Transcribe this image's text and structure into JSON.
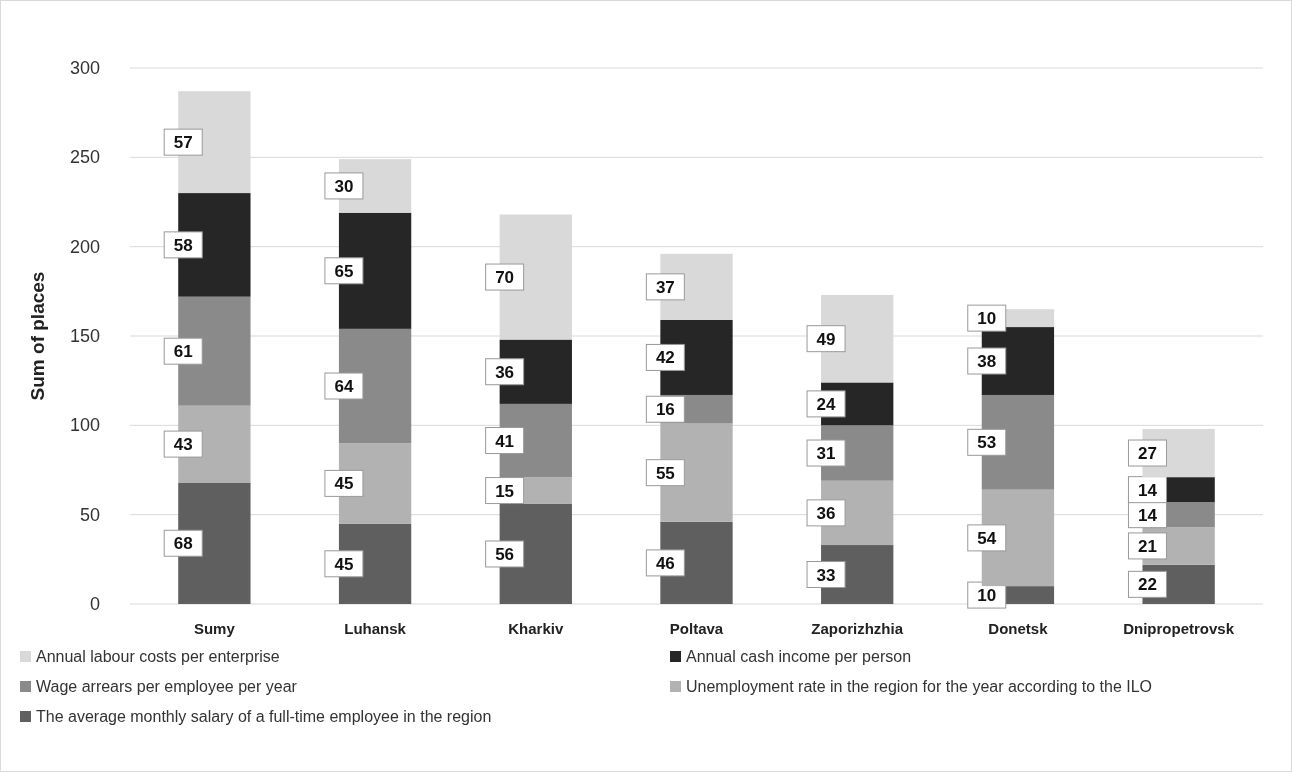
{
  "chart_data": {
    "type": "bar",
    "stacked": true,
    "ylabel": "Sum of places",
    "categories": [
      "Sumy",
      "Luhansk",
      "Kharkiv",
      "Poltava",
      "Zaporizhzhia",
      "Donetsk",
      "Dnipropetrovsk"
    ],
    "series": [
      {
        "name": "The average monthly salary of a full-time employee in the region",
        "color": "#5f5f5f",
        "values": [
          68,
          45,
          56,
          46,
          33,
          10,
          22
        ]
      },
      {
        "name": "Unemployment rate in the region for the year according to the ILO",
        "color": "#b2b2b2",
        "values": [
          43,
          45,
          15,
          55,
          36,
          54,
          21
        ]
      },
      {
        "name": "Wage arrears per employee per year",
        "color": "#8a8a8a",
        "values": [
          61,
          64,
          41,
          16,
          31,
          53,
          14
        ]
      },
      {
        "name": "Annual cash income per person",
        "color": "#262626",
        "values": [
          58,
          65,
          36,
          42,
          24,
          38,
          14
        ]
      },
      {
        "name": "Annual labour costs per enterprise",
        "color": "#d9d9d9",
        "values": [
          57,
          30,
          70,
          37,
          49,
          10,
          27
        ]
      }
    ],
    "ylim": [
      0,
      300
    ],
    "yticks": [
      0,
      50,
      100,
      150,
      200,
      250,
      300
    ],
    "grid": "y",
    "legend": "bottom",
    "data_labels": true
  }
}
